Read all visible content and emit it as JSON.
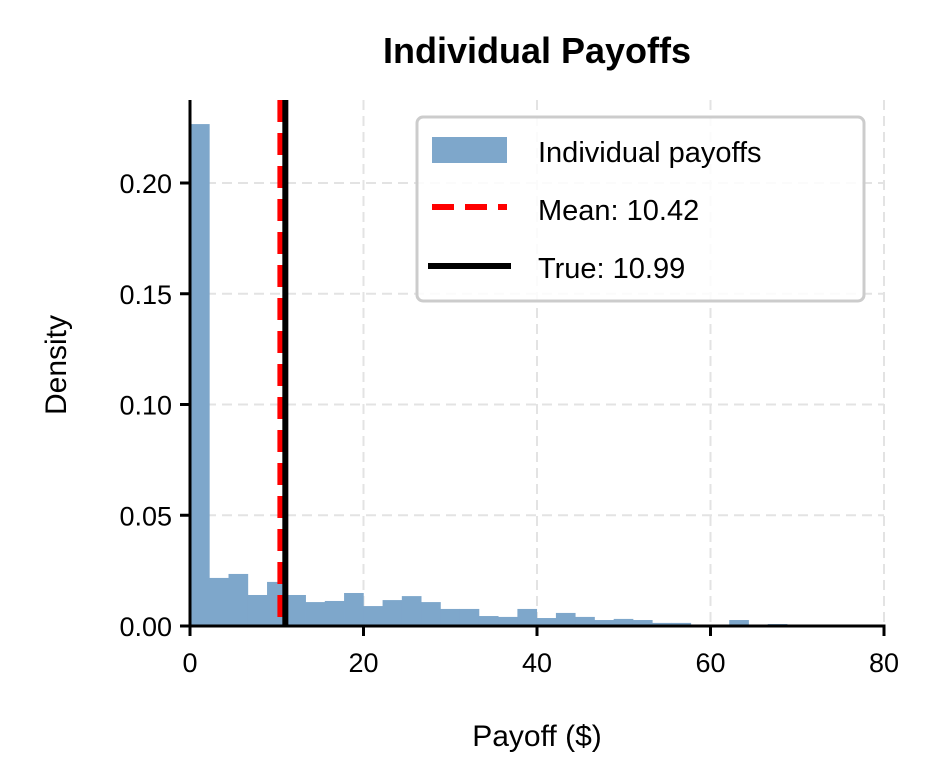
{
  "chart_data": {
    "type": "bar",
    "subtype": "histogram",
    "title": "Individual Payoffs",
    "xlabel": "Payoff ($)",
    "ylabel": "Density",
    "xlim": [
      0,
      80
    ],
    "ylim": [
      0,
      0.238
    ],
    "xticks": [
      0,
      20,
      40,
      60,
      80
    ],
    "xtick_labels": [
      "0",
      "20",
      "40",
      "60",
      "80"
    ],
    "yticks": [
      0.0,
      0.05,
      0.1,
      0.15,
      0.2
    ],
    "ytick_labels": [
      "0.00",
      "0.05",
      "0.10",
      "0.15",
      "0.20"
    ],
    "grid": true,
    "bin_width": 2.22,
    "bin_start": 0,
    "series": [
      {
        "name": "Individual payoffs",
        "color": "#7ea7cb",
        "values": [
          0.2266,
          0.0217,
          0.0235,
          0.014,
          0.0199,
          0.014,
          0.0108,
          0.0113,
          0.0149,
          0.009,
          0.0117,
          0.0135,
          0.0108,
          0.0077,
          0.0077,
          0.0045,
          0.0041,
          0.0077,
          0.0036,
          0.0059,
          0.0041,
          0.0027,
          0.0032,
          0.0027,
          0.0014,
          0.0014,
          0.0005,
          0.0,
          0.0027,
          0.0,
          0.0009
        ]
      }
    ],
    "vlines": [
      {
        "name": "Mean",
        "value": 10.42,
        "color": "#ff0000",
        "style": "dashed"
      },
      {
        "name": "True",
        "value": 10.99,
        "color": "#000000",
        "style": "solid"
      }
    ],
    "legend": {
      "position": "upper right",
      "entries": [
        "Individual payoffs",
        "Mean: 10.42",
        "True: 10.99"
      ]
    }
  }
}
